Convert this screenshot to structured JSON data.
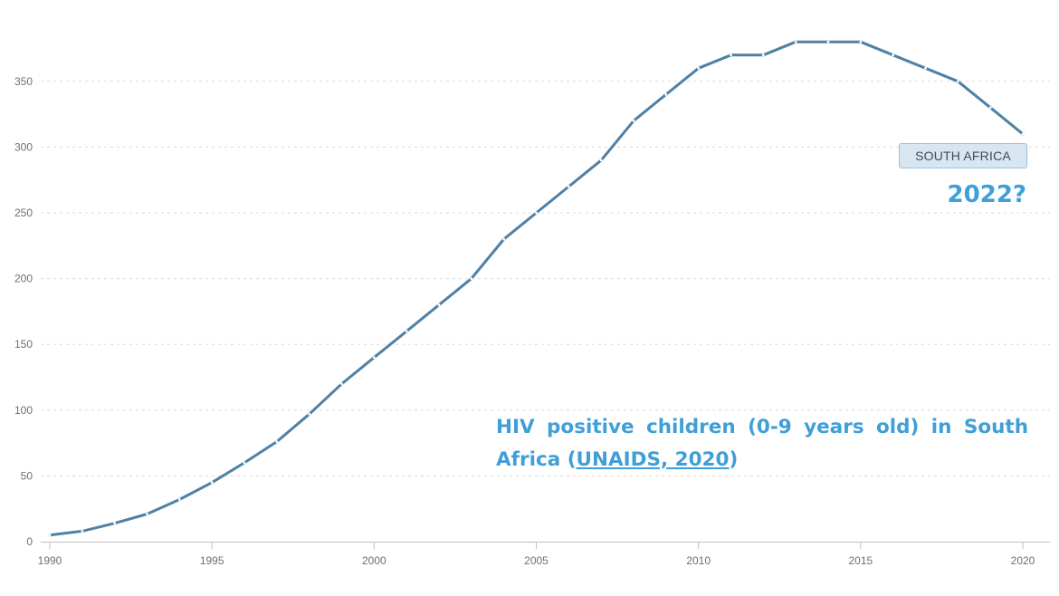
{
  "chart_data": {
    "type": "line",
    "x": [
      1990,
      1991,
      1992,
      1993,
      1994,
      1995,
      1996,
      1997,
      1998,
      1999,
      2000,
      2001,
      2002,
      2003,
      2004,
      2005,
      2006,
      2007,
      2008,
      2009,
      2010,
      2011,
      2012,
      2013,
      2014,
      2015,
      2016,
      2017,
      2018,
      2019,
      2020
    ],
    "series": [
      {
        "name": "SOUTH AFRICA",
        "values": [
          5,
          8,
          14,
          21,
          32,
          45,
          60,
          76,
          97,
          120,
          140,
          160,
          180,
          200,
          230,
          250,
          270,
          290,
          320,
          340,
          360,
          370,
          370,
          380,
          380,
          380,
          370,
          360,
          350,
          330,
          310
        ],
        "color": "#4f81a5"
      }
    ],
    "x_ticks": [
      "1990",
      "1995",
      "2000",
      "2005",
      "2010",
      "2015",
      "2020"
    ],
    "y_ticks": [
      "0",
      "50",
      "100",
      "150",
      "200",
      "250",
      "300",
      "350"
    ],
    "xlim": [
      1990,
      2020
    ],
    "ylim": [
      0,
      390
    ],
    "grid": true,
    "title": "",
    "xlabel": "",
    "ylabel": ""
  },
  "annotations": {
    "series_badge": "SOUTH AFRICA",
    "question_year": "2022?",
    "caption_text": "HIV positive children (0-9 years old) in South Africa (",
    "caption_source": "UNAIDS, 2020",
    "caption_close": ")"
  },
  "colors": {
    "line": "#4f81a5",
    "annotation_text": "#3f9fd6",
    "badge_bg": "#d8e6f1"
  }
}
